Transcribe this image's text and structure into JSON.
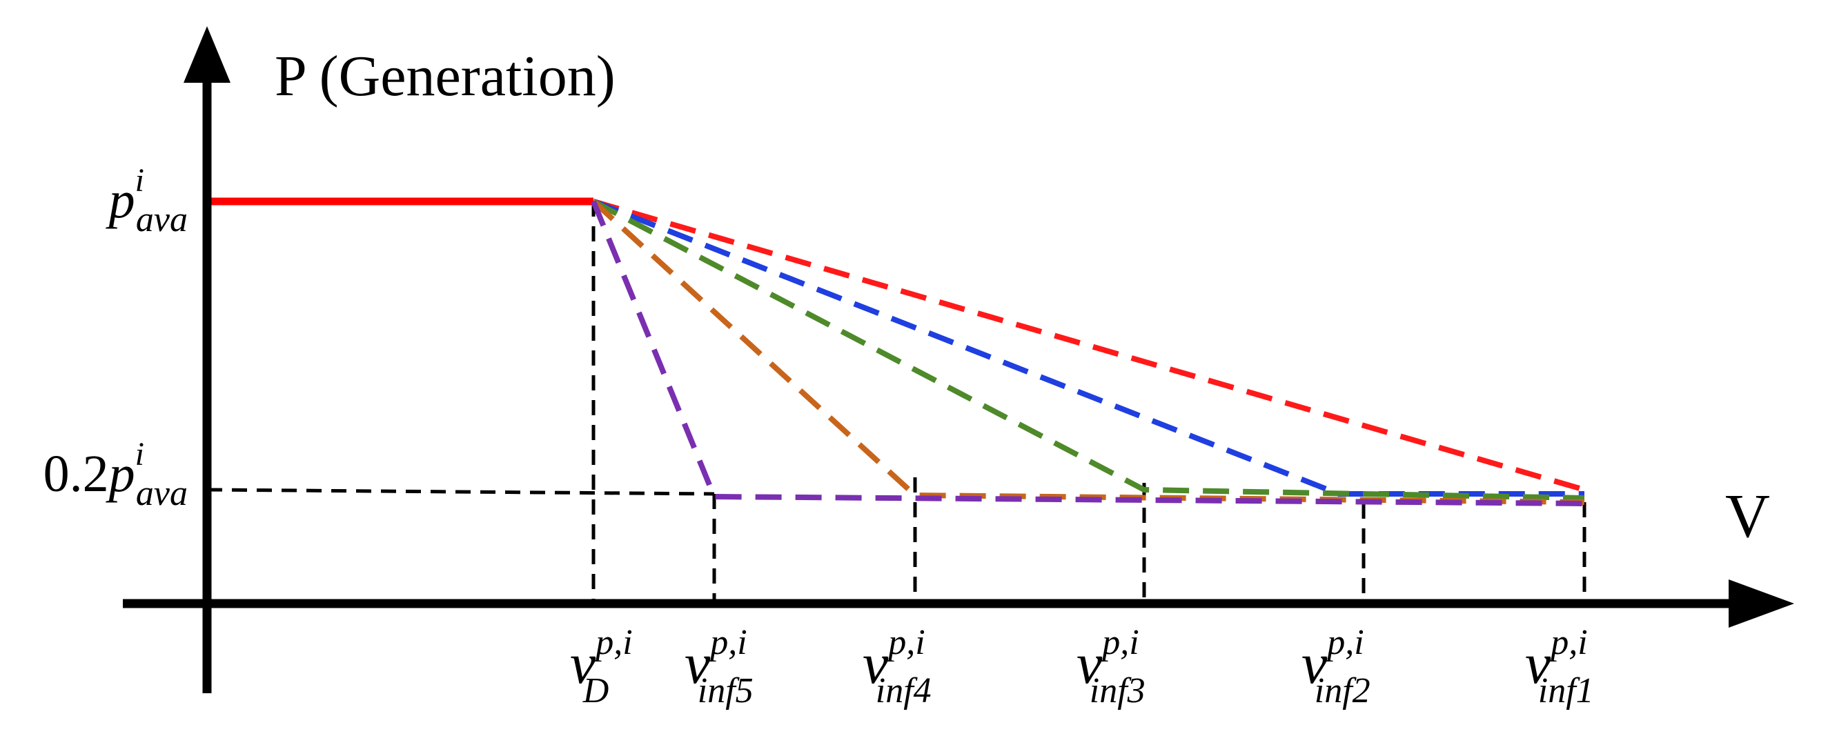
{
  "axes": {
    "y_label": "P (Generation)",
    "x_label": "V"
  },
  "y_ticks": [
    {
      "id": "p-ava",
      "coef": "",
      "base": "p",
      "sup": "i",
      "sub": "ava"
    },
    {
      "id": "p-min",
      "coef": "0.2",
      "base": "p",
      "sup": "i",
      "sub": "ava"
    }
  ],
  "x_ticks": [
    {
      "id": "v-d",
      "base": "v",
      "sup": "p,i",
      "sub": "D"
    },
    {
      "id": "v-inf5",
      "base": "v",
      "sup": "p,i",
      "sub": "inf5"
    },
    {
      "id": "v-inf4",
      "base": "v",
      "sup": "p,i",
      "sub": "inf4"
    },
    {
      "id": "v-inf3",
      "base": "v",
      "sup": "p,i",
      "sub": "inf3"
    },
    {
      "id": "v-inf2",
      "base": "v",
      "sup": "p,i",
      "sub": "inf2"
    },
    {
      "id": "v-inf1",
      "base": "v",
      "sup": "p,i",
      "sub": "inf1"
    }
  ],
  "curves": [
    {
      "id": "flat",
      "color": "#ff0000",
      "style": "solid"
    },
    {
      "id": "droop-inf1",
      "color": "#ff1a1a",
      "style": "dashed",
      "ends_at": "v-inf1"
    },
    {
      "id": "droop-inf2",
      "color": "#1f3fe0",
      "style": "dashed",
      "ends_at": "v-inf2"
    },
    {
      "id": "droop-inf3",
      "color": "#4e8a2a",
      "style": "dashed",
      "ends_at": "v-inf3"
    },
    {
      "id": "droop-inf4",
      "color": "#c8651b",
      "style": "dashed",
      "ends_at": "v-inf4"
    },
    {
      "id": "droop-inf5",
      "color": "#7a2fb0",
      "style": "dashed",
      "ends_at": "v-inf5"
    }
  ]
}
